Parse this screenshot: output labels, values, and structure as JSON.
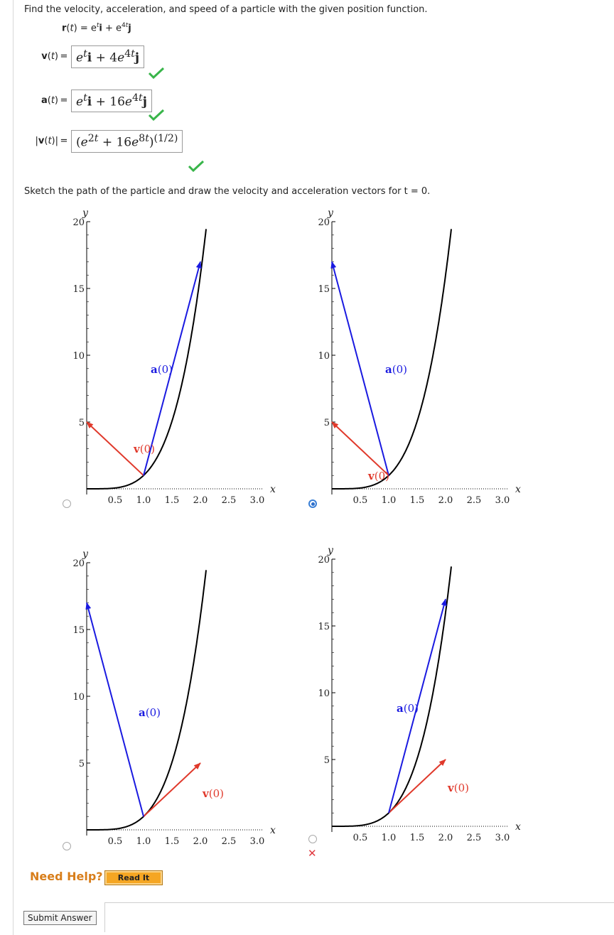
{
  "question": "Find the velocity, acceleration, and speed of a particle with the given position function.",
  "position": {
    "label": "r(t) = e",
    "rest": "i + e",
    "j": "j"
  },
  "answers": [
    {
      "label": "v(t)",
      "eq": "=",
      "expr_html": "<i>e</i><sup><i>t</i></sup><b>i</b> + 4<i>e</i><sup>4<i>t</i></sup><b>j</b>"
    },
    {
      "label": "a(t)",
      "eq": "=",
      "expr_html": "<i>e</i><sup><i>t</i></sup><b>i</b> + 16<i>e</i><sup>4<i>t</i></sup><b>j</b>"
    },
    {
      "label": "|v(t)|",
      "eq": "=",
      "expr_html": "(<i>e</i><sup>2<i>t</i></sup> + 16<i>e</i><sup>8<i>t</i></sup>)<sup>(1/2)</sup>"
    }
  ],
  "sketch_prompt": "Sketch the path of the particle and draw the velocity and acceleration vectors for t = 0.",
  "choices": [
    {
      "selected": false,
      "wrong": false
    },
    {
      "selected": true,
      "wrong": false
    },
    {
      "selected": false,
      "wrong": false
    },
    {
      "selected": false,
      "wrong": true
    }
  ],
  "chart_data": [
    {
      "type": "line",
      "xlabel": "x",
      "ylabel": "y",
      "xlim": [
        0,
        3.2
      ],
      "ylim": [
        0,
        20
      ],
      "x_ticks": [
        "0.5",
        "1.0",
        "1.5",
        "2.0",
        "2.5",
        "3.0"
      ],
      "y_ticks": [
        "5",
        "10",
        "15",
        "20"
      ],
      "series": [
        {
          "x": [
            0,
            0.5,
            1.0,
            1.5,
            2.0,
            2.2
          ],
          "y": [
            0,
            0.06,
            1,
            5.06,
            16,
            23.4
          ]
        }
      ],
      "vectors": [
        {
          "label": "v(0)",
          "from": [
            1,
            1
          ],
          "to": [
            0,
            5
          ],
          "color": "#e0392b"
        },
        {
          "label": "a(0)",
          "from": [
            1,
            1
          ],
          "to": [
            2,
            17
          ],
          "color": "#1a1ae0"
        }
      ]
    },
    {
      "type": "line",
      "xlabel": "x",
      "ylabel": "y",
      "xlim": [
        0,
        3.2
      ],
      "ylim": [
        0,
        20
      ],
      "x_ticks": [
        "0.5",
        "1.0",
        "1.5",
        "2.0",
        "2.5",
        "3.0"
      ],
      "y_ticks": [
        "5",
        "10",
        "15",
        "20"
      ],
      "series": [
        {
          "x": [
            0,
            0.5,
            1.0,
            1.5,
            2.0,
            2.2
          ],
          "y": [
            0,
            0.06,
            1,
            5.06,
            16,
            23.4
          ]
        }
      ],
      "vectors": [
        {
          "label": "v(0)",
          "from": [
            1,
            1
          ],
          "to": [
            0,
            5
          ],
          "color": "#e0392b"
        },
        {
          "label": "a(0)",
          "from": [
            1,
            1
          ],
          "to": [
            0,
            17
          ],
          "color": "#1a1ae0"
        }
      ]
    },
    {
      "type": "line",
      "xlabel": "x",
      "ylabel": "y",
      "xlim": [
        0,
        3.2
      ],
      "ylim": [
        0,
        20
      ],
      "x_ticks": [
        "0.5",
        "1.0",
        "1.5",
        "2.0",
        "2.5",
        "3.0"
      ],
      "y_ticks": [
        "5",
        "10",
        "15",
        "20"
      ],
      "series": [
        {
          "x": [
            0,
            0.5,
            1.0,
            1.5,
            2.0,
            2.2
          ],
          "y": [
            0,
            0.06,
            1,
            5.06,
            16,
            23.4
          ]
        }
      ],
      "vectors": [
        {
          "label": "v(0)",
          "from": [
            1,
            1
          ],
          "to": [
            2,
            5
          ],
          "color": "#e0392b"
        },
        {
          "label": "a(0)",
          "from": [
            1,
            1
          ],
          "to": [
            0,
            17
          ],
          "color": "#1a1ae0"
        }
      ]
    },
    {
      "type": "line",
      "xlabel": "x",
      "ylabel": "y",
      "xlim": [
        0,
        3.2
      ],
      "ylim": [
        0,
        20
      ],
      "x_ticks": [
        "0.5",
        "1.0",
        "1.5",
        "2.0",
        "2.5",
        "3.0"
      ],
      "y_ticks": [
        "5",
        "10",
        "15",
        "20"
      ],
      "series": [
        {
          "x": [
            0,
            0.5,
            1.0,
            1.5,
            2.0,
            2.2
          ],
          "y": [
            0,
            0.06,
            1,
            5.06,
            16,
            23.4
          ]
        }
      ],
      "vectors": [
        {
          "label": "v(0)",
          "from": [
            1,
            1
          ],
          "to": [
            2,
            5
          ],
          "color": "#e0392b"
        },
        {
          "label": "a(0)",
          "from": [
            1,
            1
          ],
          "to": [
            2,
            17
          ],
          "color": "#1a1ae0"
        }
      ]
    }
  ],
  "help": {
    "need_help": "Need Help?",
    "read_it": "Read It"
  },
  "submit_label": "Submit Answer"
}
